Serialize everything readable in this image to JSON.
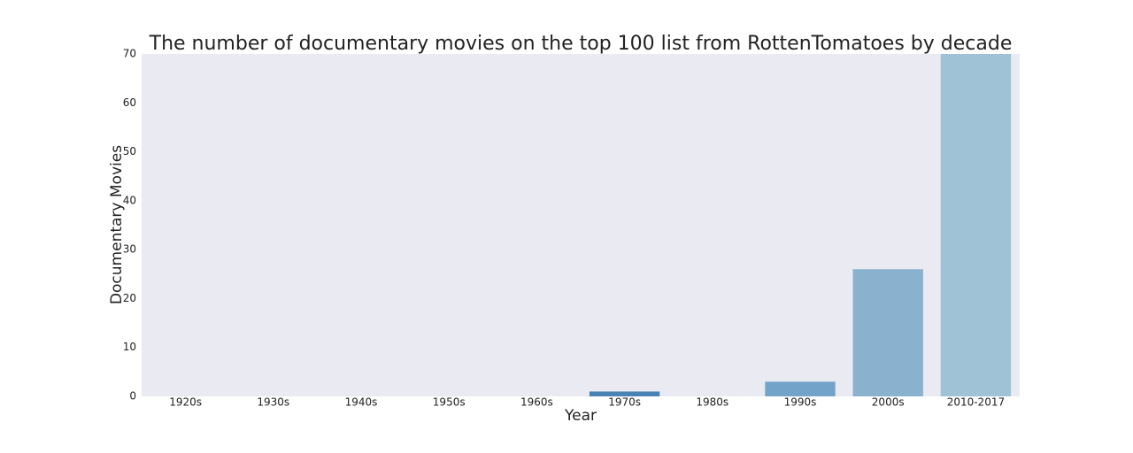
{
  "chart_data": {
    "type": "bar",
    "title": "The number of documentary movies on the top 100 list from RottenTomatoes by decade",
    "x_label": "Year",
    "y_label": "Documentary Movies",
    "categories": [
      "1920s",
      "1930s",
      "1940s",
      "1950s",
      "1960s",
      "1970s",
      "1980s",
      "1990s",
      "2000s",
      "2010-2017"
    ],
    "values": [
      0,
      0,
      0,
      0,
      0,
      1,
      0,
      3,
      26,
      70
    ],
    "colors": [
      "#1f3d5c",
      "#25496e",
      "#2c5682",
      "#336495",
      "#3c72a6",
      "#4a82b4",
      "#5c93c0",
      "#73a3c8",
      "#8ab2cf",
      "#9fc2d7"
    ],
    "ylim": [
      0,
      70
    ],
    "yticks": [
      0,
      10,
      20,
      30,
      40,
      50,
      60,
      70
    ],
    "grid": false
  }
}
